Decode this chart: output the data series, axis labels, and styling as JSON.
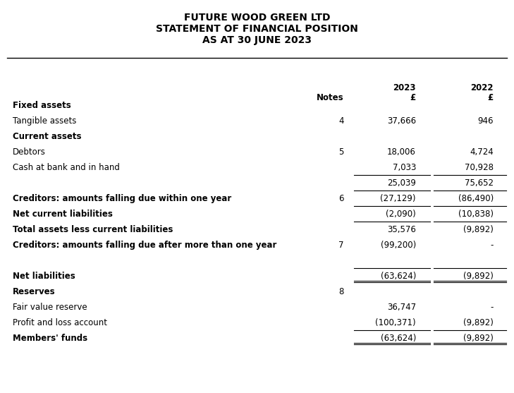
{
  "title_lines": [
    "FUTURE WOOD GREEN LTD",
    "STATEMENT OF FINANCIAL POSITION",
    "AS AT 30 JUNE 2023"
  ],
  "col_headers": {
    "notes_label": "Notes",
    "col2023_label": "2023",
    "col2022_label": "2022",
    "col2023_sub": "£",
    "col2022_sub": "£"
  },
  "rows": [
    {
      "label": "Fixed assets",
      "bold": true,
      "note": "",
      "val2023": "",
      "val2022": "",
      "ul2023": false,
      "ul2022": false,
      "dul2023": false,
      "dul2022": false,
      "extra_space_before": false
    },
    {
      "label": "Tangible assets",
      "bold": false,
      "note": "4",
      "val2023": "37,666",
      "val2022": "946",
      "ul2023": false,
      "ul2022": false,
      "dul2023": false,
      "dul2022": false,
      "extra_space_before": false
    },
    {
      "label": "Current assets",
      "bold": true,
      "note": "",
      "val2023": "",
      "val2022": "",
      "ul2023": false,
      "ul2022": false,
      "dul2023": false,
      "dul2022": false,
      "extra_space_before": false
    },
    {
      "label": "Debtors",
      "bold": false,
      "note": "5",
      "val2023": "18,006",
      "val2022": "4,724",
      "ul2023": false,
      "ul2022": false,
      "dul2023": false,
      "dul2022": false,
      "extra_space_before": false
    },
    {
      "label": "Cash at bank and in hand",
      "bold": false,
      "note": "",
      "val2023": "7,033",
      "val2022": "70,928",
      "ul2023": false,
      "ul2022": false,
      "dul2023": false,
      "dul2022": false,
      "extra_space_before": false
    },
    {
      "label": "",
      "bold": false,
      "note": "",
      "val2023": "25,039",
      "val2022": "75,652",
      "ul2023": true,
      "ul2022": true,
      "dul2023": false,
      "dul2022": false,
      "extra_space_before": false
    },
    {
      "label": "Creditors: amounts falling due within one year",
      "bold": true,
      "note": "6",
      "val2023": "(27,129)",
      "val2022": "(86,490)",
      "ul2023": true,
      "ul2022": true,
      "dul2023": false,
      "dul2022": false,
      "extra_space_before": false
    },
    {
      "label": "Net current liabilities",
      "bold": true,
      "note": "",
      "val2023": "(2,090)",
      "val2022": "(10,838)",
      "ul2023": true,
      "ul2022": true,
      "dul2023": false,
      "dul2022": false,
      "extra_space_before": false
    },
    {
      "label": "Total assets less current liabilities",
      "bold": true,
      "note": "",
      "val2023": "35,576",
      "val2022": "(9,892)",
      "ul2023": true,
      "ul2022": true,
      "dul2023": false,
      "dul2022": false,
      "extra_space_before": false
    },
    {
      "label": "Creditors: amounts falling due after more than one year",
      "bold": true,
      "note": "7",
      "val2023": "(99,200)",
      "val2022": "-",
      "ul2023": false,
      "ul2022": false,
      "dul2023": false,
      "dul2022": false,
      "extra_space_before": false
    },
    {
      "label": "",
      "bold": false,
      "note": "",
      "val2023": "",
      "val2022": "",
      "ul2023": false,
      "ul2022": false,
      "dul2023": false,
      "dul2022": false,
      "extra_space_before": false
    },
    {
      "label": "Net liabilities",
      "bold": true,
      "note": "",
      "val2023": "(63,624)",
      "val2022": "(9,892)",
      "ul2023": true,
      "ul2022": true,
      "dul2023": true,
      "dul2022": true,
      "extra_space_before": false
    },
    {
      "label": "Reserves",
      "bold": true,
      "note": "8",
      "val2023": "",
      "val2022": "",
      "ul2023": false,
      "ul2022": false,
      "dul2023": false,
      "dul2022": false,
      "extra_space_before": false
    },
    {
      "label": "Fair value reserve",
      "bold": false,
      "note": "",
      "val2023": "36,747",
      "val2022": "-",
      "ul2023": false,
      "ul2022": false,
      "dul2023": false,
      "dul2022": false,
      "extra_space_before": false
    },
    {
      "label": "Profit and loss account",
      "bold": false,
      "note": "",
      "val2023": "(100,371)",
      "val2022": "(9,892)",
      "ul2023": false,
      "ul2022": false,
      "dul2023": false,
      "dul2022": false,
      "extra_space_before": false
    },
    {
      "label": "Members' funds",
      "bold": true,
      "note": "",
      "val2023": "(63,624)",
      "val2022": "(9,892)",
      "ul2023": true,
      "ul2022": true,
      "dul2023": true,
      "dul2022": true,
      "extra_space_before": false
    }
  ],
  "font_size": 8.5,
  "title_font_size": 10.0,
  "bg_color": "#ffffff",
  "text_color": "#000000",
  "figw": 7.29,
  "figh": 5.57,
  "dpi": 100
}
